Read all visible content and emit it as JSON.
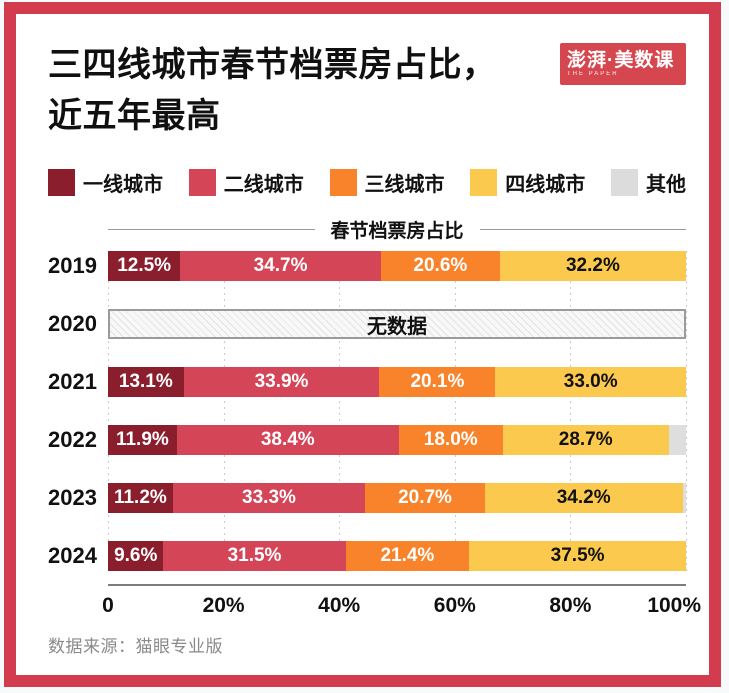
{
  "title": {
    "line1": "三四线城市春节档票房占比，",
    "line2": "近五年最高"
  },
  "logo": {
    "main": "澎湃·美数课",
    "sub": "THE PAPER",
    "bg_color": "#d5464f"
  },
  "legend": {
    "items": [
      {
        "label": "一线城市",
        "color": "#8b1e2d"
      },
      {
        "label": "二线城市",
        "color": "#d34557"
      },
      {
        "label": "三线城市",
        "color": "#f8832b"
      },
      {
        "label": "四线城市",
        "color": "#fcc94f"
      },
      {
        "label": "其他",
        "color": "#dcdcdc"
      }
    ]
  },
  "chart_data": {
    "type": "bar",
    "variant": "horizontal-stacked-100",
    "axis_title": "春节档票房占比",
    "categories": [
      "2019",
      "2020",
      "2021",
      "2022",
      "2023",
      "2024"
    ],
    "series": [
      {
        "name": "一线城市",
        "color": "#8b1e2d",
        "label_color": "#ffffff",
        "show_labels": true,
        "values": [
          12.5,
          null,
          13.1,
          11.9,
          11.2,
          9.6
        ]
      },
      {
        "name": "二线城市",
        "color": "#d34557",
        "label_color": "#ffffff",
        "show_labels": true,
        "values": [
          34.7,
          null,
          33.9,
          38.4,
          33.3,
          31.5
        ]
      },
      {
        "name": "三线城市",
        "color": "#f8832b",
        "label_color": "#ffffff",
        "show_labels": true,
        "values": [
          20.6,
          null,
          20.1,
          18.0,
          20.7,
          21.4
        ]
      },
      {
        "name": "四线城市",
        "color": "#fcc94f",
        "label_color": "#111111",
        "show_labels": true,
        "values": [
          32.2,
          null,
          33.0,
          28.7,
          34.2,
          37.5
        ]
      },
      {
        "name": "其他",
        "color": "#dedede",
        "label_color": null,
        "show_labels": false,
        "values": [
          0,
          null,
          0,
          3.0,
          0.6,
          0
        ]
      }
    ],
    "no_data": {
      "category": "2020",
      "label": "无数据"
    },
    "x_ticks": [
      "0",
      "20%",
      "40%",
      "60%",
      "80%",
      "100%"
    ],
    "xlim": [
      0,
      100
    ],
    "grid": true,
    "legend_position": "top"
  },
  "source": "数据来源：猫眼专业版",
  "colors": {
    "frame": "#d23c4e",
    "axis_line": "#7d7d7d",
    "gridline": "#cbcbcb",
    "source_text": "#8a8a8a"
  }
}
